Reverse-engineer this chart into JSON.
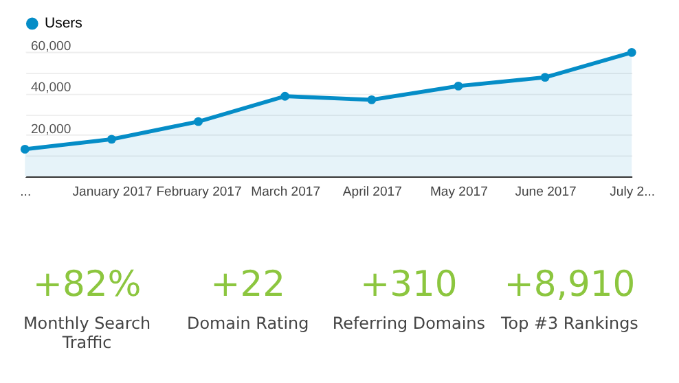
{
  "chart_data": [
    {
      "type": "area",
      "categories": [
        "...",
        "January 2017",
        "February 2017",
        "March 2017",
        "April 2017",
        "May 2017",
        "June 2017",
        "July 2..."
      ],
      "series": [
        {
          "name": "Users",
          "color": "#058dc7",
          "values": [
            13100,
            17900,
            26400,
            38600,
            36900,
            43500,
            47700,
            59700
          ]
        }
      ],
      "ylim": [
        0,
        60000
      ],
      "yticks": [
        {
          "value": 0,
          "label": null
        },
        {
          "value": 10000,
          "label": null
        },
        {
          "value": 20000,
          "label": "20,000"
        },
        {
          "value": 30000,
          "label": null
        },
        {
          "value": 40000,
          "label": "40,000"
        },
        {
          "value": 50000,
          "label": null
        },
        {
          "value": 60000,
          "label": "60,000"
        }
      ],
      "grid": "y",
      "legend": "top left",
      "marker": "circle",
      "line_style": "solid"
    },
    {
      "type": "other",
      "annotations": [
        "+82%",
        "Monthly Search Traffic",
        "+22",
        "Domain Rating",
        "+310",
        "Referring Domains",
        "+8,910",
        "Top #3 Rankings"
      ]
    }
  ]
}
